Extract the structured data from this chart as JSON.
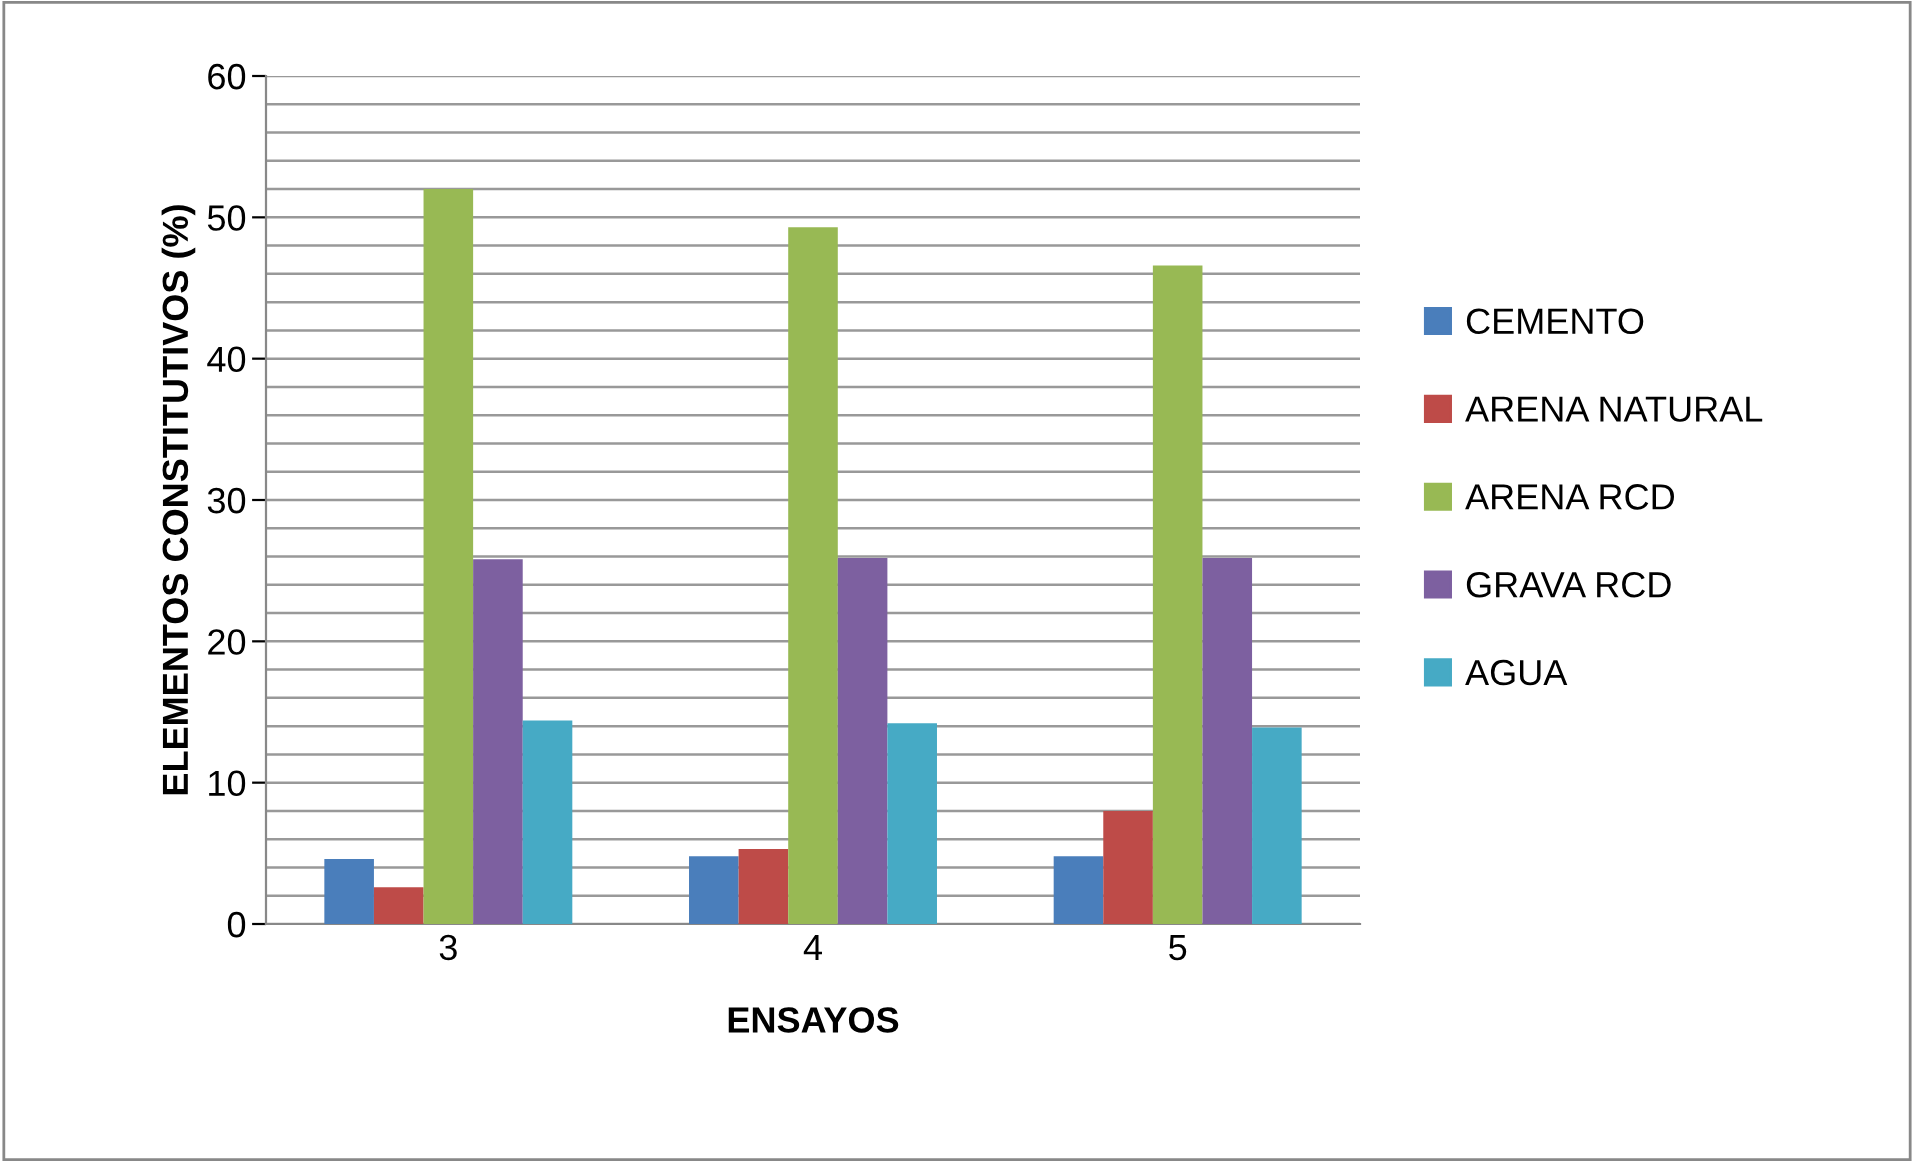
{
  "chart_data": {
    "type": "bar",
    "xlabel": "ENSAYOS",
    "ylabel": "ELEMENTOS CONSTITUTIVOS (%)",
    "categories": [
      "3",
      "4",
      "5"
    ],
    "series": [
      {
        "name": "CEMENTO",
        "color": "#4a7ebb",
        "values": [
          4.6,
          4.8,
          4.8
        ]
      },
      {
        "name": "ARENA NATURAL",
        "color": "#be4b48",
        "values": [
          2.6,
          5.3,
          8.0
        ]
      },
      {
        "name": "ARENA RCD",
        "color": "#98b954",
        "values": [
          52.0,
          49.3,
          46.6
        ]
      },
      {
        "name": "GRAVA RCD",
        "color": "#7d60a0",
        "values": [
          25.8,
          25.9,
          25.9
        ]
      },
      {
        "name": "AGUA",
        "color": "#46aac5",
        "values": [
          14.4,
          14.2,
          13.9
        ]
      }
    ],
    "ylim": [
      0,
      60
    ],
    "yticks": [
      0,
      {
        "value": 2,
        "label": null
      },
      {
        "value": 4,
        "label": null
      },
      {
        "value": 6,
        "label": null
      },
      {
        "value": 8,
        "label": null
      },
      10,
      {
        "value": 12,
        "label": null
      },
      {
        "value": 14,
        "label": null
      },
      {
        "value": 16,
        "label": null
      },
      {
        "value": 18,
        "label": null
      },
      20,
      {
        "value": 22,
        "label": null
      },
      {
        "value": 24,
        "label": null
      },
      {
        "value": 26,
        "label": null
      },
      {
        "value": 28,
        "label": null
      },
      30,
      {
        "value": 32,
        "label": null
      },
      {
        "value": 34,
        "label": null
      },
      {
        "value": 36,
        "label": null
      },
      {
        "value": 38,
        "label": null
      },
      40,
      {
        "value": 42,
        "label": null
      },
      {
        "value": 44,
        "label": null
      },
      {
        "value": 46,
        "label": null
      },
      {
        "value": 48,
        "label": null
      },
      50,
      {
        "value": 52,
        "label": null
      },
      {
        "value": 54,
        "label": null
      },
      {
        "value": 56,
        "label": null
      },
      {
        "value": 58,
        "label": null
      },
      60
    ],
    "grid": "y",
    "legend": "right"
  }
}
